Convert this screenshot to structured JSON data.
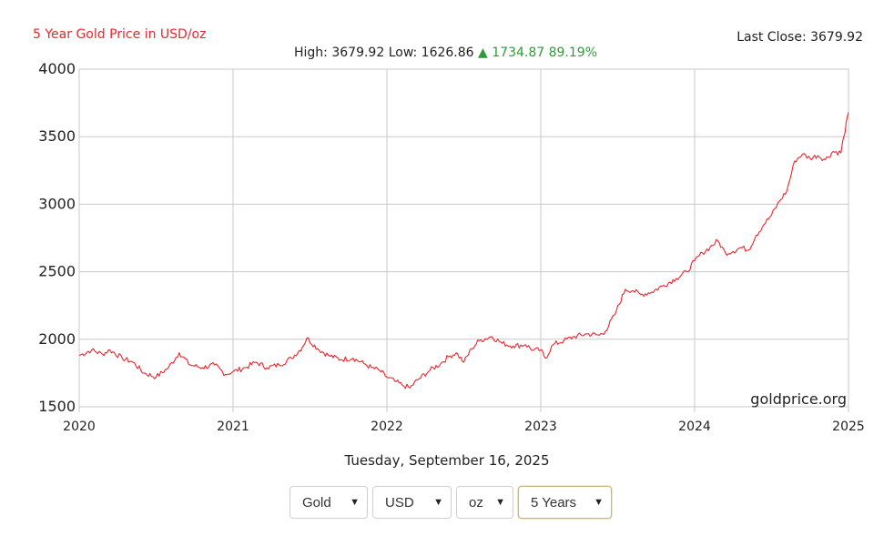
{
  "header": {
    "title": "5 Year Gold Price in USD/oz",
    "last_close": "Last Close: 3679.92",
    "high": "High: 3679.92",
    "low": "Low: 1626.86",
    "change_arrow": "▲",
    "change": "1734.87 89.19%"
  },
  "date_label": "Tuesday, September 16, 2025",
  "controls": {
    "metal": "Gold",
    "currency": "USD",
    "unit": "oz",
    "period": "5 Years"
  },
  "colors": {
    "title": "#e8262e",
    "line": "#e8262e",
    "up": "#2e9b3a",
    "grid": "#c8c8c8"
  },
  "chart_data": {
    "type": "line",
    "watermark": "goldprice.org",
    "xlim": [
      2020,
      2025
    ],
    "ylim": [
      1500,
      4000
    ],
    "x_ticks": [
      "2020",
      "2021",
      "2022",
      "2023",
      "2024",
      "2025"
    ],
    "y_ticks": [
      "4000",
      "3500",
      "3000",
      "2500",
      "2000",
      "1500"
    ],
    "grid": true,
    "series": [
      {
        "x": [
          2020.0,
          2020.08,
          2020.15,
          2020.2,
          2020.28,
          2020.35,
          2020.42,
          2020.5,
          2020.58,
          2020.65,
          2020.72,
          2020.8,
          2020.88,
          2020.95,
          2021.0,
          2021.08,
          2021.15,
          2021.22,
          2021.3,
          2021.38,
          2021.45,
          2021.48,
          2021.55,
          2021.62,
          2021.7,
          2021.78,
          2021.85,
          2021.9,
          2021.95,
          2022.0,
          2022.05,
          2022.1,
          2022.15,
          2022.2,
          2022.28,
          2022.35,
          2022.4,
          2022.45,
          2022.5,
          2022.55,
          2022.6,
          2022.68,
          2022.75,
          2022.82,
          2022.9,
          2022.95,
          2023.0,
          2023.03,
          2023.08,
          2023.15,
          2023.22,
          2023.3,
          2023.38,
          2023.42,
          2023.48,
          2023.55,
          2023.6,
          2023.65,
          2023.72,
          2023.8,
          2023.88,
          2023.95,
          2024.0,
          2024.05,
          2024.1,
          2024.15,
          2024.2,
          2024.25,
          2024.3,
          2024.35,
          2024.4,
          2024.45,
          2024.5,
          2024.55,
          2024.6,
          2024.65,
          2024.7,
          2024.75,
          2024.8,
          2024.85,
          2024.9,
          2024.95,
          2024.97,
          2025.0
        ],
        "y": [
          1880,
          1920,
          1890,
          1920,
          1860,
          1830,
          1750,
          1720,
          1790,
          1900,
          1810,
          1790,
          1810,
          1740,
          1760,
          1790,
          1830,
          1790,
          1810,
          1860,
          1940,
          2010,
          1930,
          1880,
          1850,
          1860,
          1820,
          1790,
          1770,
          1720,
          1690,
          1660,
          1640,
          1700,
          1770,
          1820,
          1870,
          1900,
          1830,
          1930,
          1990,
          2020,
          1970,
          1950,
          1960,
          1920,
          1920,
          1860,
          1960,
          1990,
          2020,
          2040,
          2030,
          2060,
          2180,
          2370,
          2360,
          2330,
          2350,
          2400,
          2450,
          2500,
          2580,
          2640,
          2680,
          2730,
          2640,
          2650,
          2680,
          2660,
          2770,
          2850,
          2920,
          3020,
          3100,
          3320,
          3370,
          3340,
          3360,
          3330,
          3390,
          3380,
          3500,
          3680
        ]
      }
    ]
  }
}
